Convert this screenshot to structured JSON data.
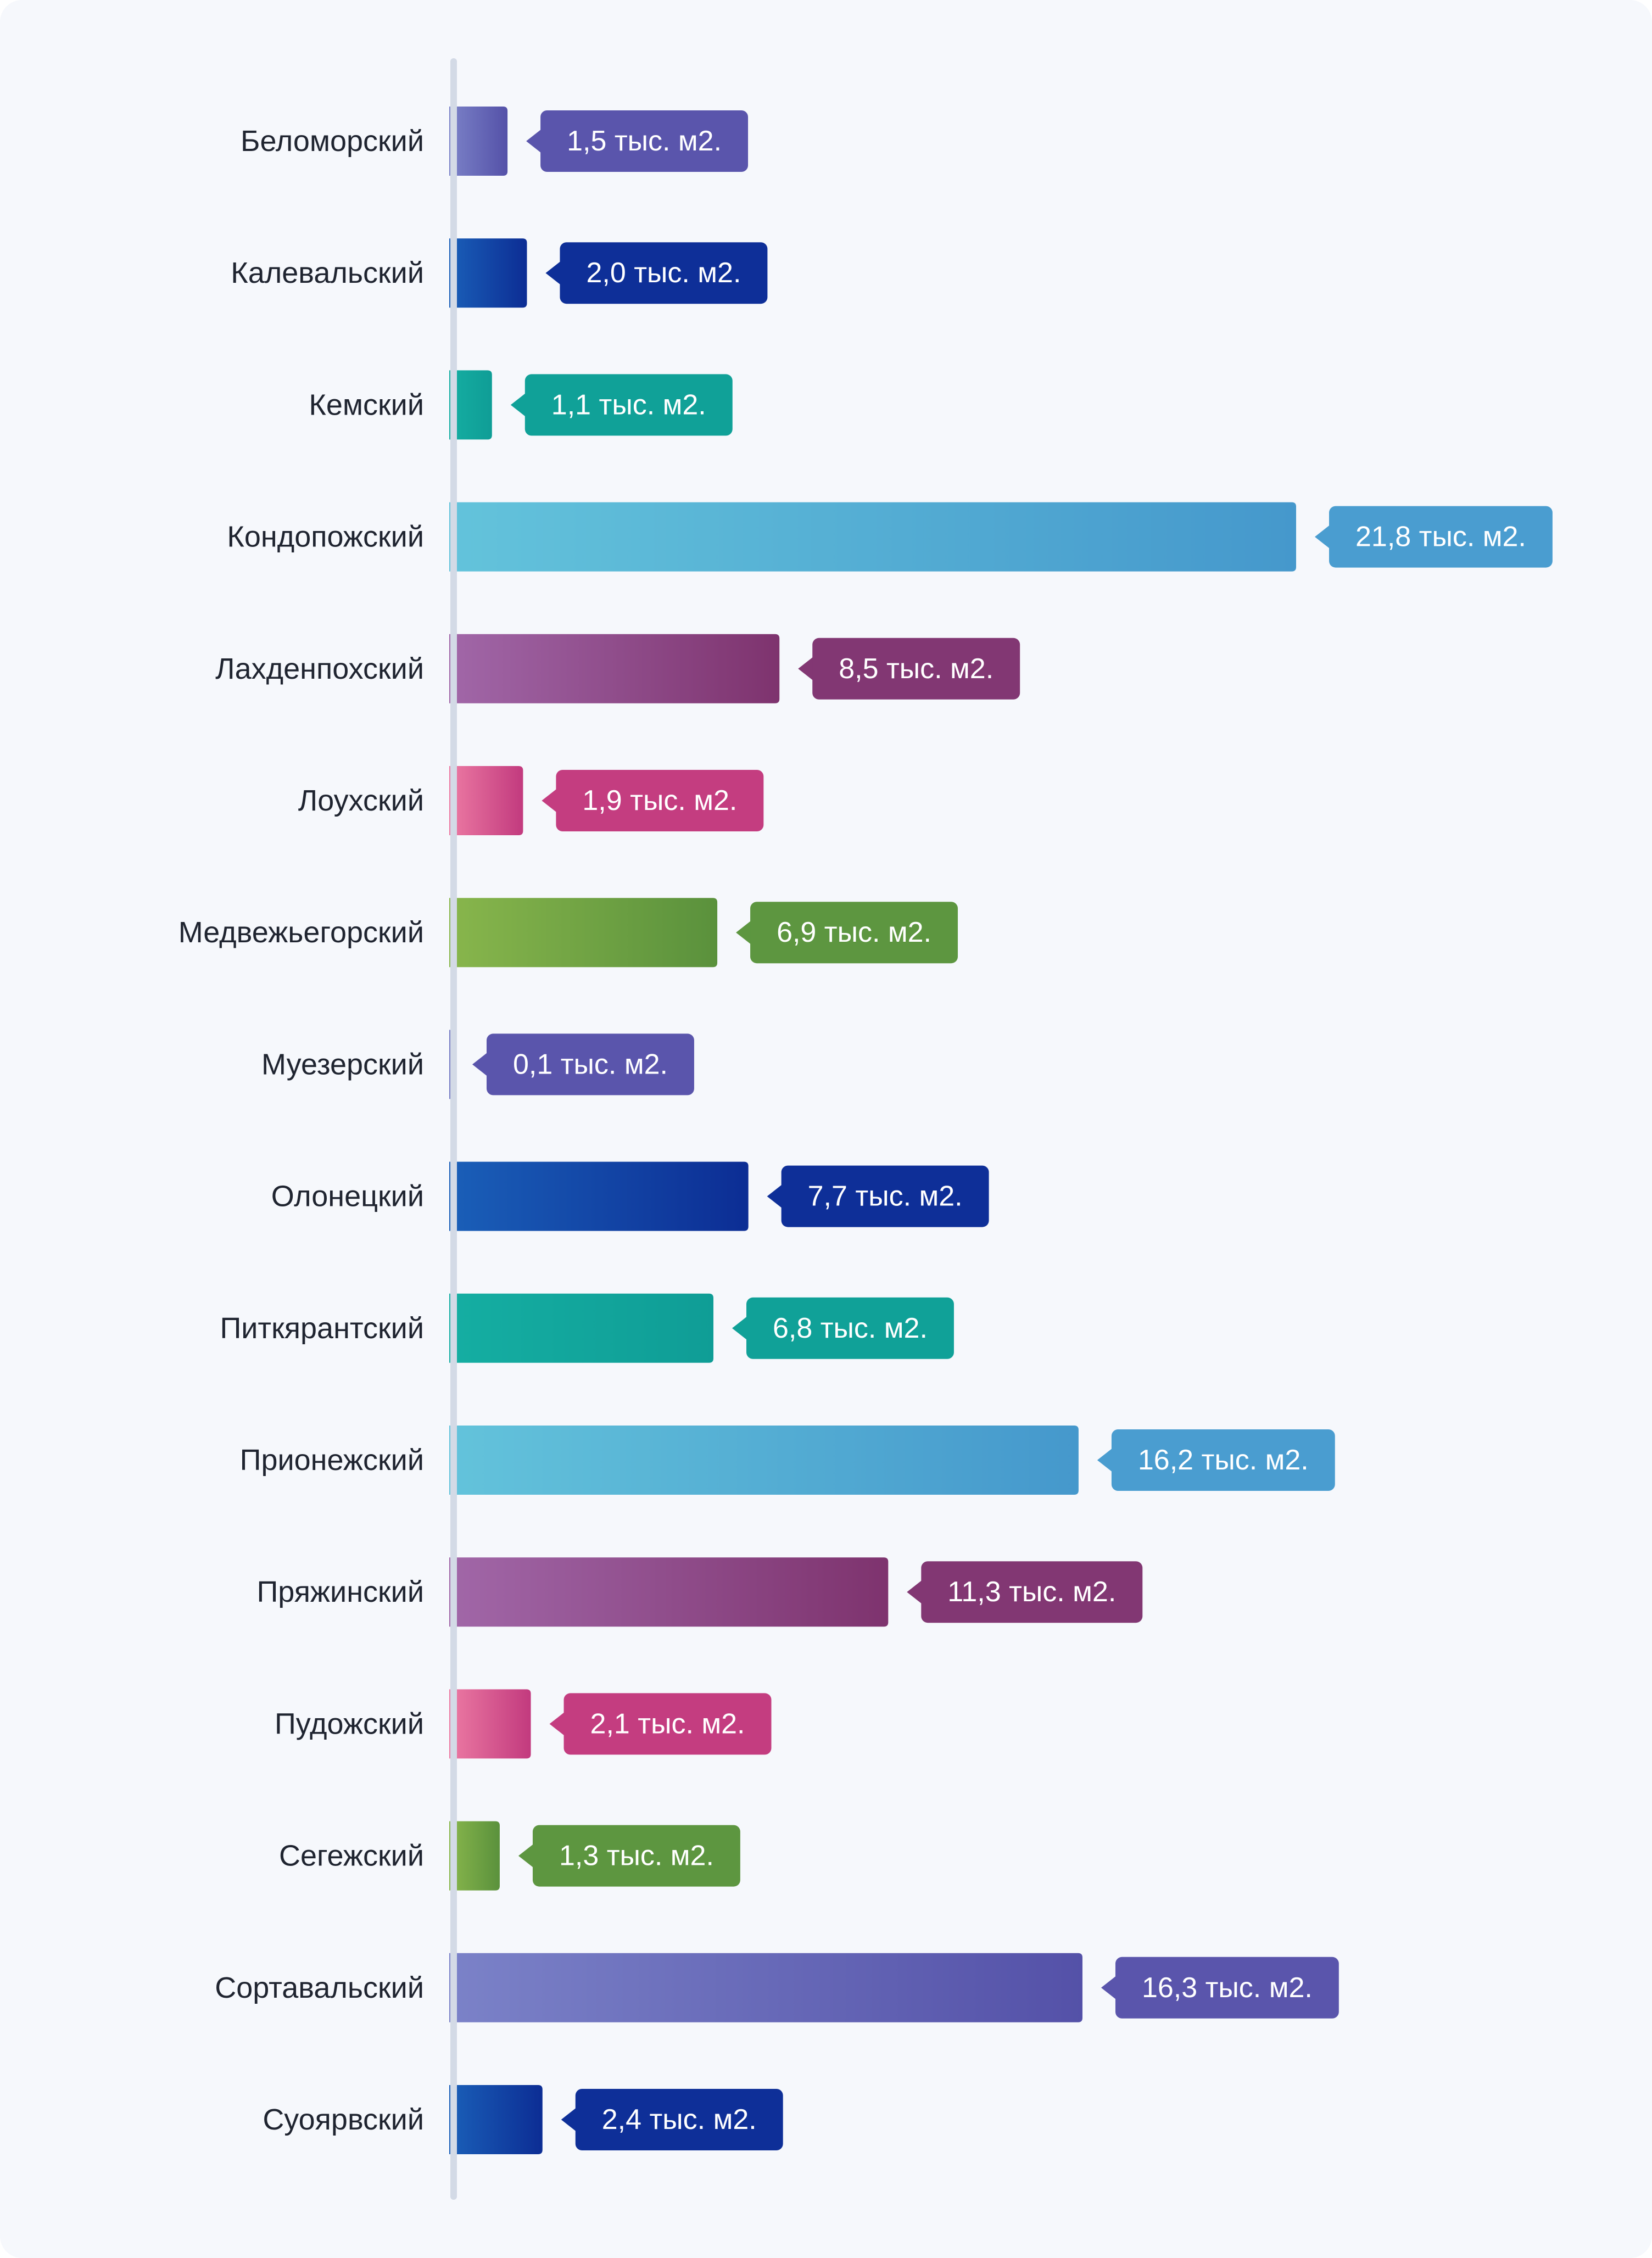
{
  "chart_data": {
    "type": "bar",
    "orientation": "horizontal",
    "grid": false,
    "legend": "none",
    "unit": "тыс. м2.",
    "categories": [
      "Беломорский",
      "Калевальский",
      "Кемский",
      "Кондопожский",
      "Лахденпохский",
      "Лоухский",
      "Медвежьегорский",
      "Муезерский",
      "Олонецкий",
      "Питкярантский",
      "Прионежский",
      "Пряжинский",
      "Пудожский",
      "Сегежский",
      "Сортавальский",
      "Суоярвский"
    ],
    "values": [
      1.5,
      2.0,
      1.1,
      21.8,
      8.5,
      1.9,
      6.9,
      0.1,
      7.7,
      6.8,
      16.2,
      11.3,
      2.1,
      1.3,
      16.3,
      2.4
    ],
    "value_labels": [
      "1,5 тыс. м2.",
      "2,0 тыс. м2.",
      "1,1 тыс. м2.",
      "21,8 тыс. м2.",
      "8,5 тыс. м2.",
      "1,9 тыс. м2.",
      "6,9 тыс. м2.",
      "0,1 тыс. м2.",
      "7,7 тыс. м2.",
      "6,8 тыс. м2.",
      "16,2 тыс. м2.",
      "11,3 тыс. м2.",
      "2,1 тыс. м2.",
      "1,3 тыс. м2.",
      "16,3 тыс. м2.",
      "2,4 тыс. м2."
    ],
    "xlim": [
      0,
      21.8
    ],
    "palette": [
      {
        "light": "#7b82c8",
        "dark": "#5451a8",
        "label": "#5a55ac"
      },
      {
        "light": "#1a5fb8",
        "dark": "#0c2d94",
        "label": "#0e2f98"
      },
      {
        "light": "#15aea2",
        "dark": "#0f9d96",
        "label": "#10a198"
      },
      {
        "light": "#63c3db",
        "dark": "#4598cc",
        "label": "#4a9dd0"
      },
      {
        "light": "#a167a8",
        "dark": "#7e336e",
        "label": "#823773"
      },
      {
        "light": "#ec7aa3",
        "dark": "#c23a7e",
        "label": "#c43d80"
      },
      {
        "light": "#88b64c",
        "dark": "#5a913c",
        "label": "#5d9640"
      }
    ],
    "color_index": [
      0,
      1,
      2,
      3,
      4,
      5,
      6,
      0,
      1,
      2,
      3,
      4,
      5,
      6,
      0,
      1
    ],
    "axis_color": "#d3dae6"
  }
}
